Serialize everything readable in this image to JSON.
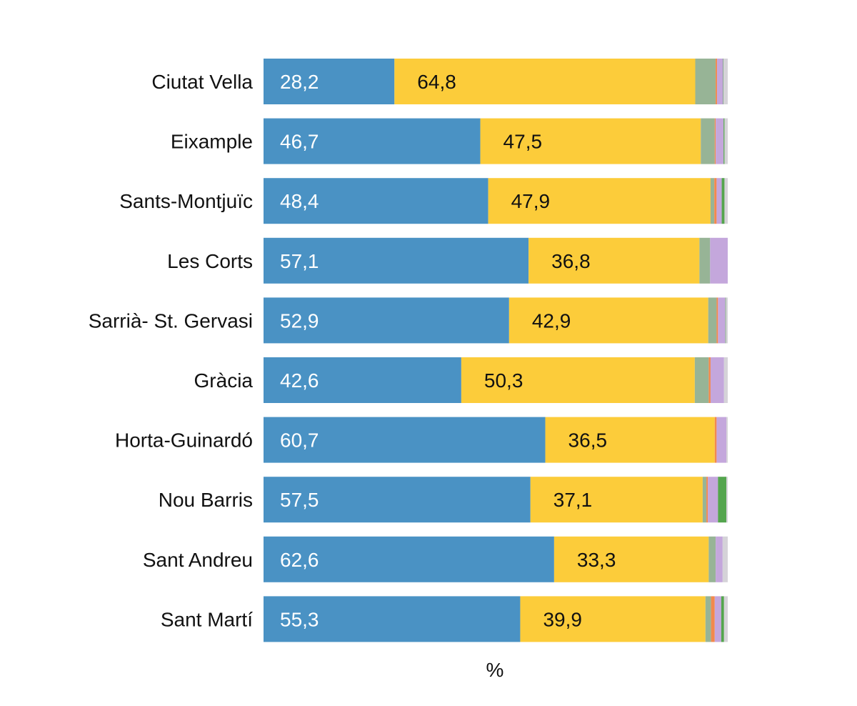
{
  "chart_data": {
    "type": "bar",
    "orientation": "horizontal",
    "stacked": true,
    "categories": [
      "Ciutat Vella",
      "Eixample",
      "Sants-Montjuïc",
      "Les Corts",
      "Sarrià- St. Gervasi",
      "Gràcia",
      "Horta-Guinardó",
      "Nou Barris",
      "Sant Andreu",
      "Sant Martí"
    ],
    "series": [
      {
        "color": "#4a92c4",
        "label_color": "#ffffff",
        "values": [
          28.2,
          46.7,
          48.4,
          57.1,
          52.9,
          42.6,
          60.7,
          57.5,
          62.6,
          55.3
        ]
      },
      {
        "color": "#fccc3a",
        "label_color": "#111111",
        "values": [
          64.8,
          47.5,
          47.9,
          36.8,
          42.9,
          50.3,
          36.5,
          37.1,
          33.3,
          39.9
        ]
      },
      {
        "color": "#97b496",
        "values": [
          4.4,
          3.0,
          0.8,
          2.3,
          1.8,
          3.0,
          0.0,
          0.8,
          1.5,
          1.2
        ]
      },
      {
        "color": "#f2894d",
        "values": [
          0.3,
          0.2,
          0.5,
          0.0,
          0.3,
          0.4,
          0.4,
          0.3,
          0.0,
          0.8
        ]
      },
      {
        "color": "#c4a7dc",
        "values": [
          1.3,
          1.7,
          1.1,
          3.8,
          1.6,
          2.9,
          2.1,
          2.2,
          1.5,
          1.4
        ]
      },
      {
        "color": "#54a54e",
        "values": [
          0.1,
          0.2,
          0.6,
          0.0,
          0.1,
          0.0,
          0.0,
          1.8,
          0.0,
          0.6
        ]
      },
      {
        "color": "#d5d3d8",
        "values": [
          0.9,
          0.7,
          0.7,
          0.0,
          0.4,
          0.8,
          0.3,
          0.3,
          1.1,
          0.8
        ]
      }
    ],
    "value_labels": [
      [
        "28,2",
        "64,8"
      ],
      [
        "46,7",
        "47,5"
      ],
      [
        "48,4",
        "47,9"
      ],
      [
        "57,1",
        "36,8"
      ],
      [
        "52,9",
        "42,9"
      ],
      [
        "42,6",
        "50,3"
      ],
      [
        "60,7",
        "36,5"
      ],
      [
        "57,5",
        "37,1"
      ],
      [
        "62,6",
        "33,3"
      ],
      [
        "55,3",
        "39,9"
      ]
    ],
    "xlabel": "%",
    "ylabel": "",
    "title": "",
    "xlim": [
      0,
      100
    ],
    "grid": false,
    "legend": "none"
  }
}
